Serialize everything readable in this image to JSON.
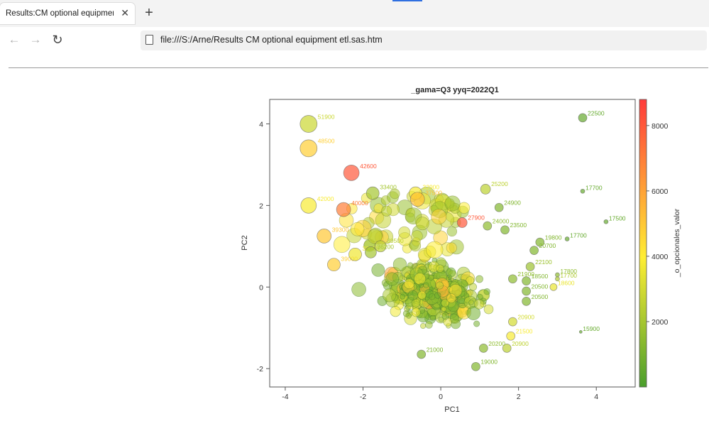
{
  "browser": {
    "tab_title": "Results:CM optional equipment etl.s",
    "tab_close": "✕",
    "new_tab": "+",
    "back": "←",
    "forward": "→",
    "reload": "↻",
    "url": "file:///S:/Arne/Results CM optional equipment etl.sas.htm"
  },
  "chart_data": {
    "type": "scatter",
    "title": "_gama=Q3 yyq=2022Q1",
    "xlabel": "PC1",
    "ylabel": "PC2",
    "xlim": [
      -4.4,
      5.0
    ],
    "ylim": [
      -2.45,
      4.6
    ],
    "xticks": [
      "-4",
      "-2",
      "0",
      "2",
      "4"
    ],
    "yticks": [
      "-2",
      "0",
      "2",
      "4"
    ],
    "colorbar": {
      "label": "_o_opcionales_valor",
      "range": [
        0,
        8800
      ],
      "ticks": [
        "2000",
        "4000",
        "6000",
        "8000"
      ],
      "colors": [
        "#4a9e2c",
        "#ffee33",
        "#ff3b3b"
      ]
    },
    "grid": false,
    "labeled_points": [
      {
        "x": -3.4,
        "y": 4.0,
        "v": 2800,
        "s": 12,
        "label": "51900"
      },
      {
        "x": -3.4,
        "y": 3.4,
        "v": 4800,
        "s": 12,
        "label": "48500"
      },
      {
        "x": -2.3,
        "y": 2.8,
        "v": 8000,
        "s": 11,
        "label": "42600"
      },
      {
        "x": 3.65,
        "y": 4.15,
        "v": 600,
        "s": 6,
        "label": "22500"
      },
      {
        "x": 3.65,
        "y": 2.35,
        "v": 600,
        "s": 3,
        "label": "17700"
      },
      {
        "x": 4.25,
        "y": 1.6,
        "v": 600,
        "s": 3,
        "label": "17500"
      },
      {
        "x": 3.25,
        "y": 1.18,
        "v": 600,
        "s": 3,
        "label": "17700"
      },
      {
        "x": 3.0,
        "y": 0.3,
        "v": 1500,
        "s": 3,
        "label": "17800"
      },
      {
        "x": 3.0,
        "y": 0.2,
        "v": 2200,
        "s": 3,
        "label": "17700"
      },
      {
        "x": 2.9,
        "y": 0.0,
        "v": 3500,
        "s": 5,
        "label": "18600"
      },
      {
        "x": 3.6,
        "y": -1.1,
        "v": 600,
        "s": 2,
        "label": "15900"
      },
      {
        "x": -3.4,
        "y": 2.0,
        "v": 3800,
        "s": 11,
        "label": "42000"
      },
      {
        "x": -2.5,
        "y": 1.9,
        "v": 7000,
        "s": 10,
        "label": "40000"
      },
      {
        "x": -3.0,
        "y": 1.25,
        "v": 5000,
        "s": 10,
        "label": "39300"
      },
      {
        "x": -2.75,
        "y": 0.55,
        "v": 4800,
        "s": 9,
        "label": "39000"
      },
      {
        "x": -2.2,
        "y": 0.8,
        "v": 3600,
        "s": 9,
        "label": "39000"
      },
      {
        "x": -1.75,
        "y": 2.3,
        "v": 2000,
        "s": 9,
        "label": "33400"
      },
      {
        "x": -0.65,
        "y": 2.3,
        "v": 3800,
        "s": 9,
        "label": "32900"
      },
      {
        "x": -0.6,
        "y": 2.15,
        "v": 5200,
        "s": 10,
        "label": "37500"
      },
      {
        "x": 1.15,
        "y": 2.4,
        "v": 2500,
        "s": 7,
        "label": "25200"
      },
      {
        "x": 1.5,
        "y": 1.95,
        "v": 1200,
        "s": 6,
        "label": "24900"
      },
      {
        "x": 0.55,
        "y": 1.58,
        "v": 8000,
        "s": 7,
        "label": "27900"
      },
      {
        "x": 1.2,
        "y": 1.5,
        "v": 1500,
        "s": 6,
        "label": "24000"
      },
      {
        "x": 1.65,
        "y": 1.4,
        "v": 1200,
        "s": 6,
        "label": "23500"
      },
      {
        "x": 2.55,
        "y": 1.1,
        "v": 1200,
        "s": 6,
        "label": "19800"
      },
      {
        "x": 2.4,
        "y": 0.9,
        "v": 1200,
        "s": 6,
        "label": "20700"
      },
      {
        "x": 2.3,
        "y": 0.5,
        "v": 1800,
        "s": 6,
        "label": "22100"
      },
      {
        "x": 1.85,
        "y": 0.2,
        "v": 1500,
        "s": 6,
        "label": "21900"
      },
      {
        "x": 2.2,
        "y": 0.15,
        "v": 1200,
        "s": 6,
        "label": "18500"
      },
      {
        "x": 2.2,
        "y": -0.1,
        "v": 1200,
        "s": 6,
        "label": "20500"
      },
      {
        "x": 2.2,
        "y": -0.35,
        "v": 1200,
        "s": 6,
        "label": "20500"
      },
      {
        "x": 1.85,
        "y": -0.85,
        "v": 3000,
        "s": 6,
        "label": "20900"
      },
      {
        "x": 1.8,
        "y": -1.2,
        "v": 3800,
        "s": 6,
        "label": "21500"
      },
      {
        "x": 1.7,
        "y": -1.5,
        "v": 2500,
        "s": 6,
        "label": "20900"
      },
      {
        "x": 1.1,
        "y": -1.5,
        "v": 1500,
        "s": 6,
        "label": "20200"
      },
      {
        "x": -0.5,
        "y": -1.65,
        "v": 1200,
        "s": 6,
        "label": "21000"
      },
      {
        "x": 0.9,
        "y": -1.95,
        "v": 1200,
        "s": 6,
        "label": "19000"
      },
      {
        "x": -1.55,
        "y": 1.0,
        "v": 2500,
        "s": 8,
        "label": "39500"
      },
      {
        "x": -1.8,
        "y": 0.85,
        "v": 2000,
        "s": 8,
        "label": "36200"
      }
    ]
  }
}
